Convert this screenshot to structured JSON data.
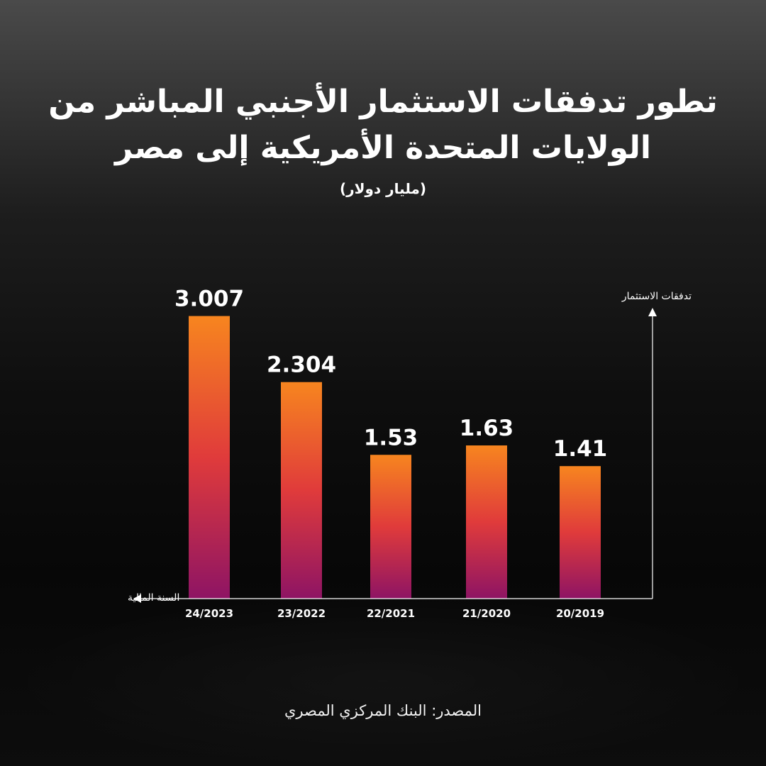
{
  "header": {
    "title_line1": "تطور تدفقات الاستثمار الأجنبي المباشر من",
    "title_line2": "الولايات المتحدة الأمريكية إلى مصر",
    "subtitle": "(مليار دولار)"
  },
  "footer": {
    "source": "المصدر: البنك المركزي المصري"
  },
  "colors": {
    "bar_top": "#f7851f",
    "bar_mid": "#e03b3b",
    "bar_bottom": "#8e1464",
    "axis": "#ffffff"
  },
  "chart_data": {
    "type": "bar",
    "categories": [
      "24/2023",
      "23/2022",
      "22/2021",
      "21/2020",
      "20/2019"
    ],
    "values": [
      3.007,
      2.304,
      1.53,
      1.63,
      1.41
    ],
    "value_labels": [
      "3.007",
      "2.304",
      "1.53",
      "1.63",
      "1.41"
    ],
    "xlabel": "السنة المالية",
    "ylabel": "تدفقات الاستثمار",
    "ylim": [
      0,
      3.4
    ],
    "grid": false,
    "legend": "none"
  }
}
